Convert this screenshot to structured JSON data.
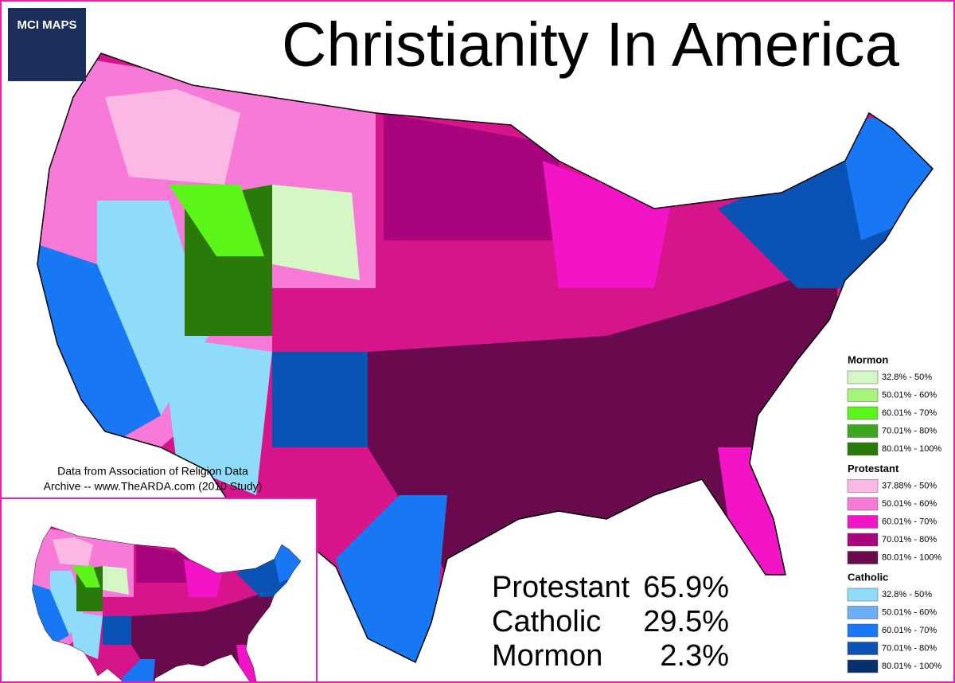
{
  "logo": {
    "title": "MCI MAPS"
  },
  "header": {
    "title": "Christianity In America"
  },
  "source": {
    "lines": [
      "Data from Association of Religion Data",
      "Archive --  www.TheARDA.com (2010 Study)"
    ]
  },
  "totals": [
    {
      "name": "Protestant",
      "value": "65.9%"
    },
    {
      "name": "Catholic",
      "value": "29.5%"
    },
    {
      "name": "Mormon",
      "value": "2.3%"
    }
  ],
  "legend": [
    {
      "name": "Mormon",
      "items": [
        {
          "label": "32.8% - 50%",
          "color": "#d4f7c4"
        },
        {
          "label": "50.01% - 60%",
          "color": "#a6f57a"
        },
        {
          "label": "60.01% - 70%",
          "color": "#5cf51a"
        },
        {
          "label": "70.01% - 80%",
          "color": "#3aa81c"
        },
        {
          "label": "80.01% - 100%",
          "color": "#2a7a0a"
        }
      ]
    },
    {
      "name": "Protestant",
      "items": [
        {
          "label": "37.88% - 50%",
          "color": "#fbb8e4"
        },
        {
          "label": "50.01% - 60%",
          "color": "#f77ad8"
        },
        {
          "label": "60.01% - 70%",
          "color": "#f214c6"
        },
        {
          "label": "70.01% - 80%",
          "color": "#a8047e"
        },
        {
          "label": "80.01% - 100%",
          "color": "#6a0a4e"
        }
      ]
    },
    {
      "name": "Catholic",
      "items": [
        {
          "label": "32.8% - 50%",
          "color": "#8edcfa"
        },
        {
          "label": "50.01% - 60%",
          "color": "#6aaef5"
        },
        {
          "label": "60.01% - 70%",
          "color": "#1877f2"
        },
        {
          "label": "70.01% - 80%",
          "color": "#0a52b4"
        },
        {
          "label": "80.01% - 100%",
          "color": "#07306e"
        }
      ]
    }
  ]
}
